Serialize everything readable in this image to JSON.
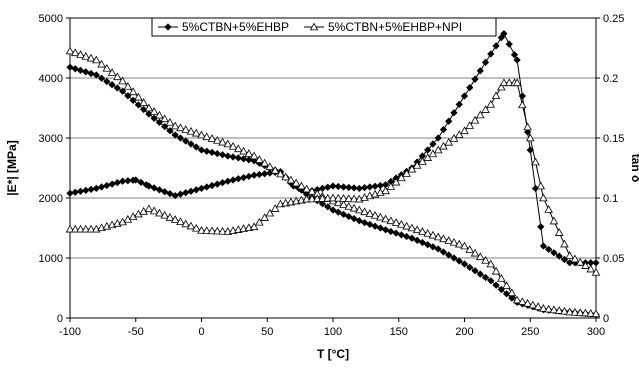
{
  "chart_data": {
    "type": "line",
    "xlabel": "T [°C]",
    "ylabel": "|E*| [MPa]",
    "y2label": "tan δ",
    "xlim": [
      -100,
      300
    ],
    "ylim": [
      0,
      5000
    ],
    "y2lim": [
      0,
      0.25
    ],
    "xticks": [
      "-100",
      "-50",
      "0",
      "50",
      "100",
      "150",
      "200",
      "250",
      "300"
    ],
    "yticks": [
      "0",
      "1000",
      "2000",
      "3000",
      "4000",
      "5000"
    ],
    "y2ticks": [
      "0",
      "0.05",
      "0.1",
      "0.15",
      "0.2",
      "0.25"
    ],
    "grid": "horizontal",
    "legend_position": "top",
    "series": [
      {
        "name": "5%CTBN+5%EHBP",
        "marker": "diamond-filled",
        "color": "#000000",
        "modulus": {
          "x": [
            -100,
            -80,
            -60,
            -40,
            -20,
            0,
            20,
            40,
            60,
            80,
            100,
            120,
            140,
            160,
            180,
            200,
            220,
            240,
            260,
            280,
            300
          ],
          "y": [
            4180,
            4050,
            3780,
            3400,
            3050,
            2800,
            2700,
            2620,
            2420,
            2060,
            1800,
            1620,
            1470,
            1330,
            1150,
            900,
            620,
            260,
            140,
            100,
            60
          ]
        },
        "tan_delta": {
          "x": [
            -100,
            -80,
            -60,
            -50,
            -40,
            -20,
            0,
            20,
            40,
            60,
            70,
            80,
            100,
            120,
            140,
            160,
            180,
            200,
            220,
            230,
            240,
            250,
            260,
            280,
            300
          ],
          "y": [
            0.104,
            0.108,
            0.114,
            0.115,
            0.11,
            0.102,
            0.108,
            0.114,
            0.119,
            0.122,
            0.11,
            0.105,
            0.11,
            0.108,
            0.111,
            0.125,
            0.15,
            0.185,
            0.22,
            0.237,
            0.215,
            0.14,
            0.06,
            0.046,
            0.046
          ]
        }
      },
      {
        "name": "5%CTBN+5%EHBP+NPI",
        "marker": "triangle-open",
        "color": "#000000",
        "modulus": {
          "x": [
            -100,
            -80,
            -60,
            -40,
            -20,
            0,
            20,
            40,
            60,
            80,
            100,
            120,
            140,
            160,
            180,
            200,
            220,
            240,
            260,
            280,
            300
          ],
          "y": [
            4450,
            4300,
            3950,
            3500,
            3200,
            3050,
            2900,
            2700,
            2400,
            2150,
            1950,
            1800,
            1650,
            1500,
            1350,
            1200,
            900,
            300,
            160,
            100,
            70
          ]
        },
        "tan_delta": {
          "x": [
            -100,
            -80,
            -60,
            -40,
            -20,
            0,
            20,
            40,
            60,
            80,
            100,
            120,
            140,
            160,
            180,
            200,
            220,
            230,
            240,
            250,
            260,
            280,
            300
          ],
          "y": [
            0.074,
            0.074,
            0.08,
            0.091,
            0.082,
            0.073,
            0.072,
            0.076,
            0.095,
            0.099,
            0.1,
            0.099,
            0.106,
            0.124,
            0.14,
            0.156,
            0.178,
            0.196,
            0.196,
            0.15,
            0.1,
            0.052,
            0.038
          ]
        }
      }
    ]
  }
}
